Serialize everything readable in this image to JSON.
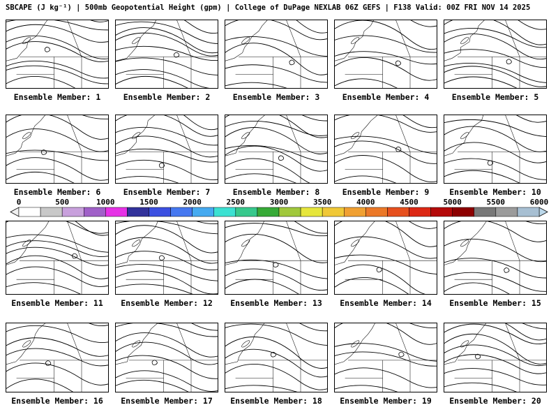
{
  "header": {
    "title": "SBCAPE (J kg⁻¹) | 500mb Geopotential Height (gpm) | College of DuPage NEXLAB 06Z GEFS | F138 Valid: 00Z FRI NOV 14 2025"
  },
  "members": [
    {
      "label": "Ensemble Member: 1"
    },
    {
      "label": "Ensemble Member: 2"
    },
    {
      "label": "Ensemble Member: 3"
    },
    {
      "label": "Ensemble Member: 4"
    },
    {
      "label": "Ensemble Member: 5"
    },
    {
      "label": "Ensemble Member: 6"
    },
    {
      "label": "Ensemble Member: 7"
    },
    {
      "label": "Ensemble Member: 8"
    },
    {
      "label": "Ensemble Member: 9"
    },
    {
      "label": "Ensemble Member: 10"
    },
    {
      "label": "Ensemble Member: 11"
    },
    {
      "label": "Ensemble Member: 12"
    },
    {
      "label": "Ensemble Member: 13"
    },
    {
      "label": "Ensemble Member: 14"
    },
    {
      "label": "Ensemble Member: 15"
    },
    {
      "label": "Ensemble Member: 16"
    },
    {
      "label": "Ensemble Member: 17"
    },
    {
      "label": "Ensemble Member: 18"
    },
    {
      "label": "Ensemble Member: 19"
    },
    {
      "label": "Ensemble Member: 20"
    }
  ],
  "colorbar": {
    "ticks": [
      "0",
      "500",
      "1000",
      "1500",
      "2000",
      "2500",
      "3000",
      "3500",
      "4000",
      "4500",
      "5000",
      "5500",
      "6000"
    ],
    "segments": [
      "#ffffff",
      "#c8c8c8",
      "#c8a0dc",
      "#a060c8",
      "#e632e6",
      "#32329b",
      "#3c50e1",
      "#4678f0",
      "#46aaf0",
      "#3ce1d2",
      "#37c88c",
      "#37aa37",
      "#a0c83c",
      "#e6e63c",
      "#f0c837",
      "#f0a032",
      "#eb7828",
      "#e6501e",
      "#dc2814",
      "#b40a0a",
      "#8c0000",
      "#787878",
      "#9b9b9b",
      "#a7bfd2"
    ],
    "left_arrow_color": "#f0f0f0",
    "right_arrow_color": "#bcd8ea"
  }
}
